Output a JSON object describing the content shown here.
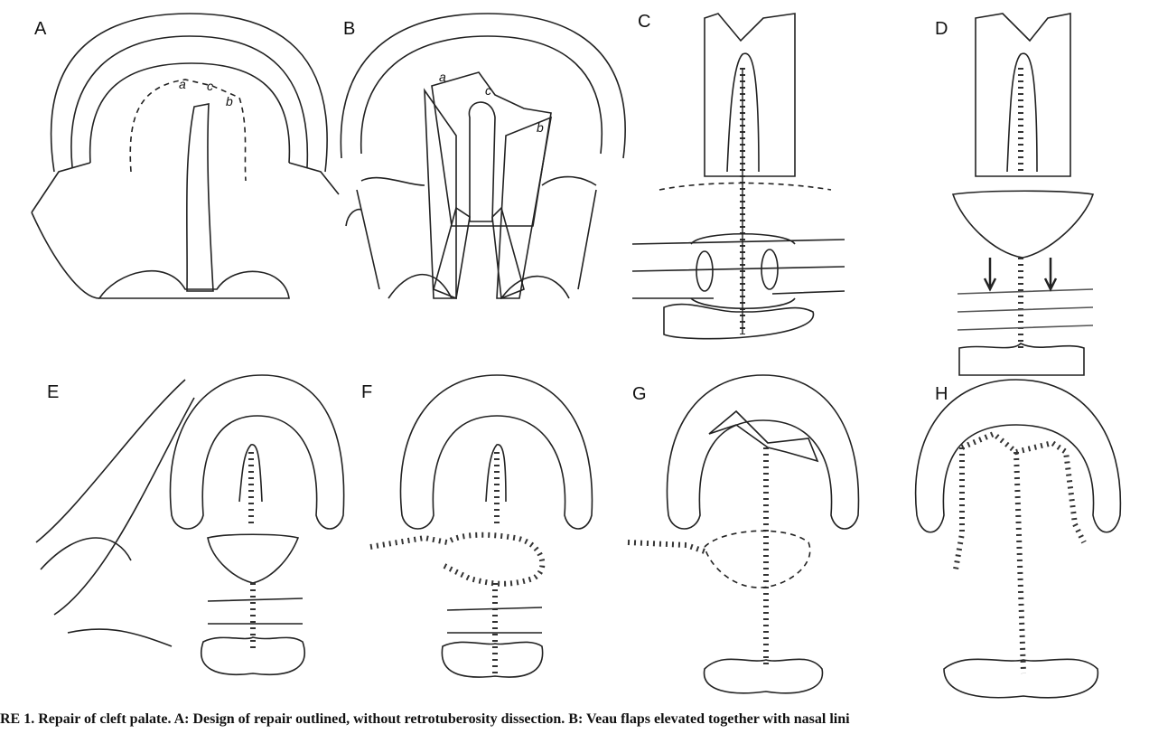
{
  "panels": [
    {
      "label": "A",
      "points": [
        "a",
        "c",
        "b"
      ]
    },
    {
      "label": "B",
      "points": [
        "a",
        "c",
        "b"
      ]
    },
    {
      "label": "C"
    },
    {
      "label": "D"
    },
    {
      "label": "E"
    },
    {
      "label": "F"
    },
    {
      "label": "G"
    },
    {
      "label": "H"
    }
  ],
  "caption": "RE 1.  Repair of cleft palate. A: Design of repair outlined, without retrotuberosity dissection. B: Veau flaps elevated together with nasal lini"
}
